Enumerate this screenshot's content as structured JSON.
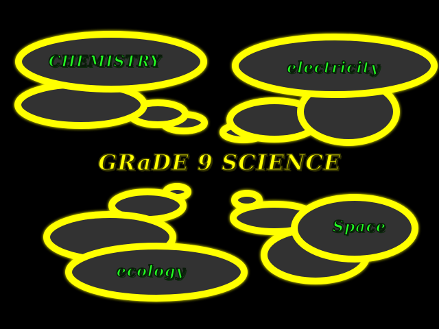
{
  "title": {
    "text": "GRaDE 9 SCIENCE",
    "color": "#ffff00"
  },
  "colors": {
    "background": "#000000",
    "bubble_fill": "#333333",
    "bubble_outline": "#ffff00",
    "label": "#22ff22"
  },
  "topics": [
    {
      "id": "chemistry",
      "label": "CHEMISTRY"
    },
    {
      "id": "electricity",
      "label": "electricity"
    },
    {
      "id": "ecology",
      "label": "ecology"
    },
    {
      "id": "space",
      "label": "Space"
    }
  ]
}
